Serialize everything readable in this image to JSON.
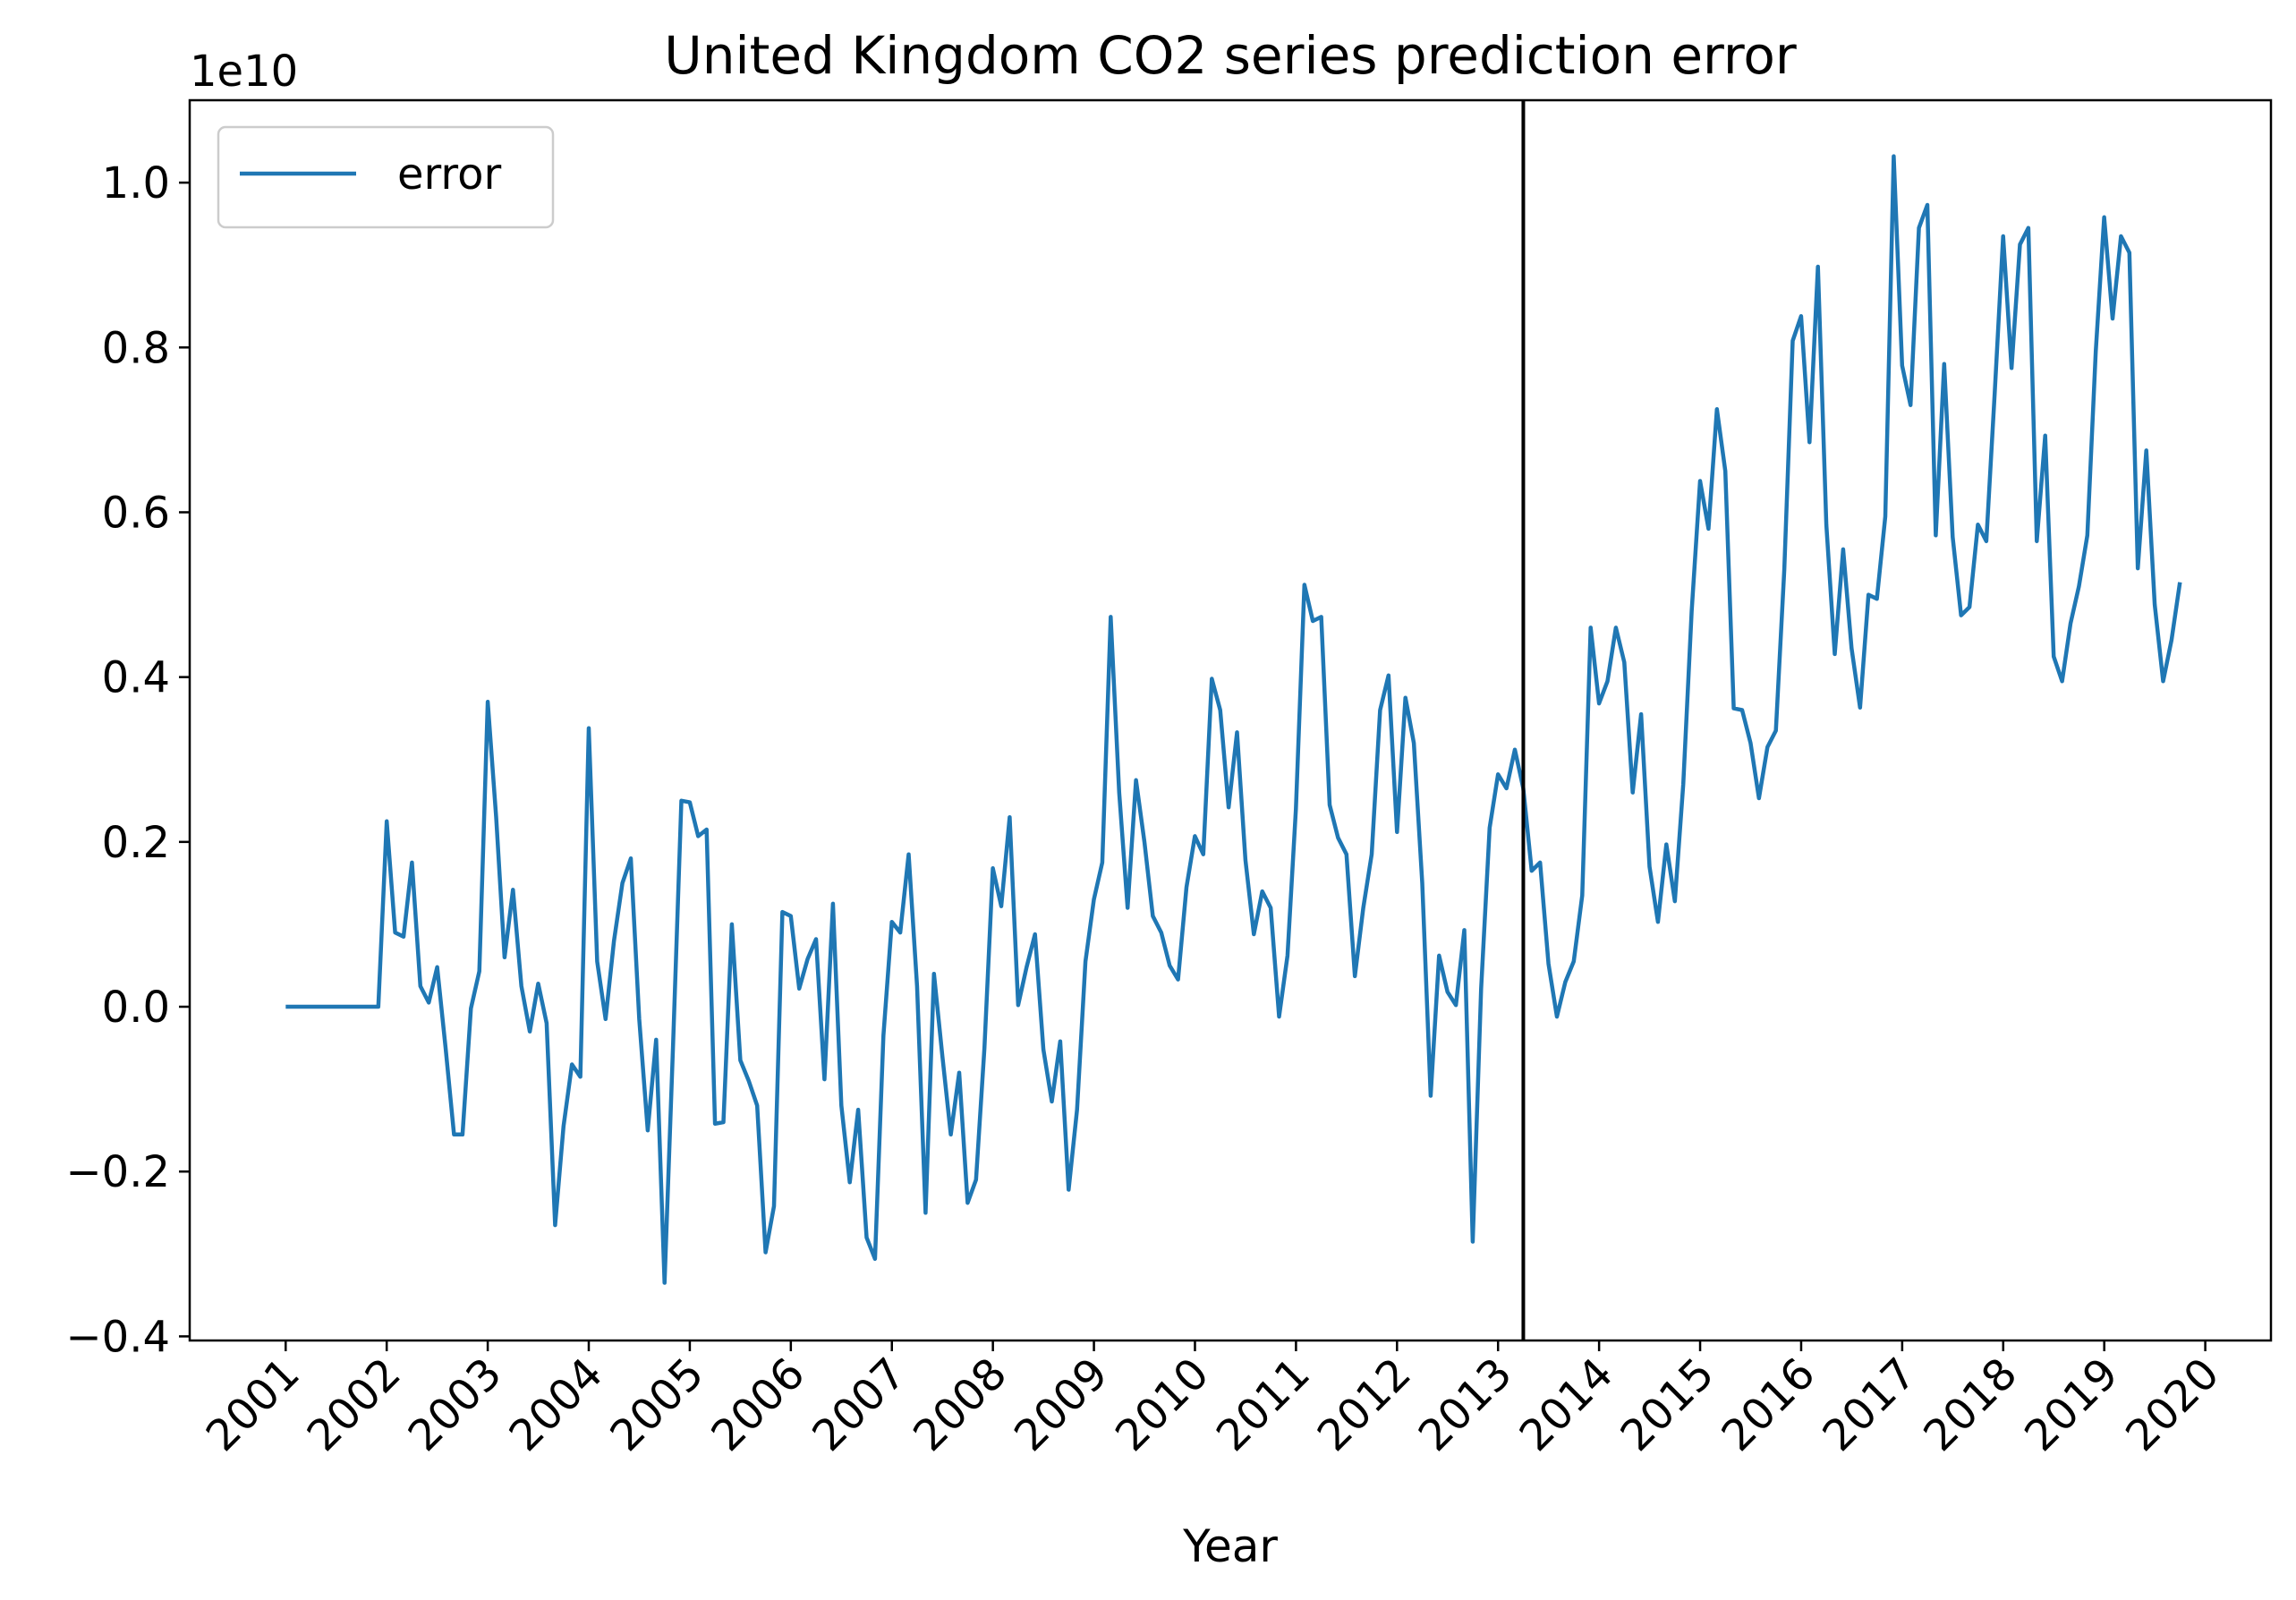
{
  "chart_data": {
    "type": "line",
    "title": "United Kingdom  CO2 series prediction error",
    "xlabel": "Year",
    "ylabel": "",
    "y_offset_label": "1e10",
    "ylim": [
      -0.405,
      1.1
    ],
    "xlim": [
      2000.05,
      2020.65
    ],
    "x_ticks": [
      2001,
      2002,
      2003,
      2004,
      2005,
      2006,
      2007,
      2008,
      2009,
      2010,
      2011,
      2012,
      2013,
      2014,
      2015,
      2016,
      2017,
      2018,
      2019,
      2020
    ],
    "y_ticks": [
      -0.4,
      -0.2,
      0.0,
      0.2,
      0.4,
      0.6,
      0.8,
      1.0
    ],
    "y_tick_labels": [
      "−0.4",
      "−0.2",
      "0.0",
      "0.2",
      "0.4",
      "0.6",
      "0.8",
      "1.0"
    ],
    "vline_x": 2013.25,
    "legend": {
      "position": "upper left",
      "entries": [
        "error"
      ]
    },
    "grid": false,
    "colors": {
      "series": "#1f77b4",
      "vline": "#000000"
    },
    "series": [
      {
        "name": "error",
        "x_start": 2001.0,
        "x_step": 0.08333,
        "values": [
          0.0,
          0.0,
          0.0,
          0.0,
          0.0,
          0.0,
          0.0,
          0.0,
          0.0,
          0.0,
          0.0,
          0.0,
          0.225,
          0.09,
          0.085,
          0.175,
          0.025,
          0.005,
          0.048,
          -0.05,
          -0.155,
          -0.155,
          -0.002,
          0.043,
          0.37,
          0.23,
          0.06,
          0.142,
          0.025,
          -0.03,
          0.028,
          -0.02,
          -0.265,
          -0.145,
          -0.07,
          -0.085,
          0.338,
          0.055,
          -0.015,
          0.08,
          0.15,
          0.18,
          -0.015,
          -0.15,
          -0.04,
          -0.335,
          -0.05,
          0.25,
          0.248,
          0.207,
          0.215,
          -0.142,
          -0.14,
          0.1,
          -0.065,
          -0.09,
          -0.12,
          -0.298,
          -0.242,
          0.115,
          0.11,
          0.022,
          0.058,
          0.082,
          -0.088,
          0.125,
          -0.12,
          -0.213,
          -0.125,
          -0.28,
          -0.306,
          -0.035,
          0.103,
          0.09,
          0.185,
          0.025,
          -0.25,
          0.04,
          -0.06,
          -0.155,
          -0.08,
          -0.238,
          -0.21,
          -0.05,
          0.168,
          0.122,
          0.23,
          0.002,
          0.048,
          0.088,
          -0.052,
          -0.115,
          -0.042,
          -0.222,
          -0.125,
          0.055,
          0.13,
          0.175,
          0.473,
          0.26,
          0.12,
          0.275,
          0.2,
          0.11,
          0.09,
          0.05,
          0.033,
          0.145,
          0.207,
          0.185,
          0.398,
          0.36,
          0.242,
          0.333,
          0.178,
          0.088,
          0.14,
          0.12,
          -0.012,
          0.062,
          0.24,
          0.512,
          0.468,
          0.473,
          0.245,
          0.205,
          0.185,
          0.037,
          0.12,
          0.185,
          0.36,
          0.402,
          0.212,
          0.375,
          0.32,
          0.15,
          -0.108,
          0.062,
          0.018,
          0.002,
          0.093,
          -0.285,
          0.022,
          0.217,
          0.282,
          0.265,
          0.312,
          0.265,
          0.165,
          0.175,
          0.052,
          -0.012,
          0.03,
          0.055,
          0.135,
          0.46,
          0.368,
          0.395,
          0.46,
          0.418,
          0.26,
          0.355,
          0.17,
          0.103,
          0.197,
          0.128,
          0.27,
          0.48,
          0.638,
          0.58,
          0.725,
          0.65,
          0.362,
          0.36,
          0.32,
          0.253,
          0.315,
          0.335,
          0.53,
          0.808,
          0.838,
          0.685,
          0.898,
          0.585,
          0.428,
          0.555,
          0.435,
          0.363,
          0.5,
          0.495,
          0.595,
          1.032,
          0.778,
          0.73,
          0.945,
          0.973,
          0.572,
          0.78,
          0.57,
          0.475,
          0.485,
          0.585,
          0.565,
          0.745,
          0.935,
          0.775,
          0.925,
          0.945,
          0.565,
          0.693,
          0.425,
          0.395,
          0.465,
          0.51,
          0.572,
          0.795,
          0.958,
          0.835,
          0.935,
          0.915,
          0.532,
          0.675,
          0.488,
          0.395,
          0.445,
          0.515
        ]
      }
    ]
  }
}
